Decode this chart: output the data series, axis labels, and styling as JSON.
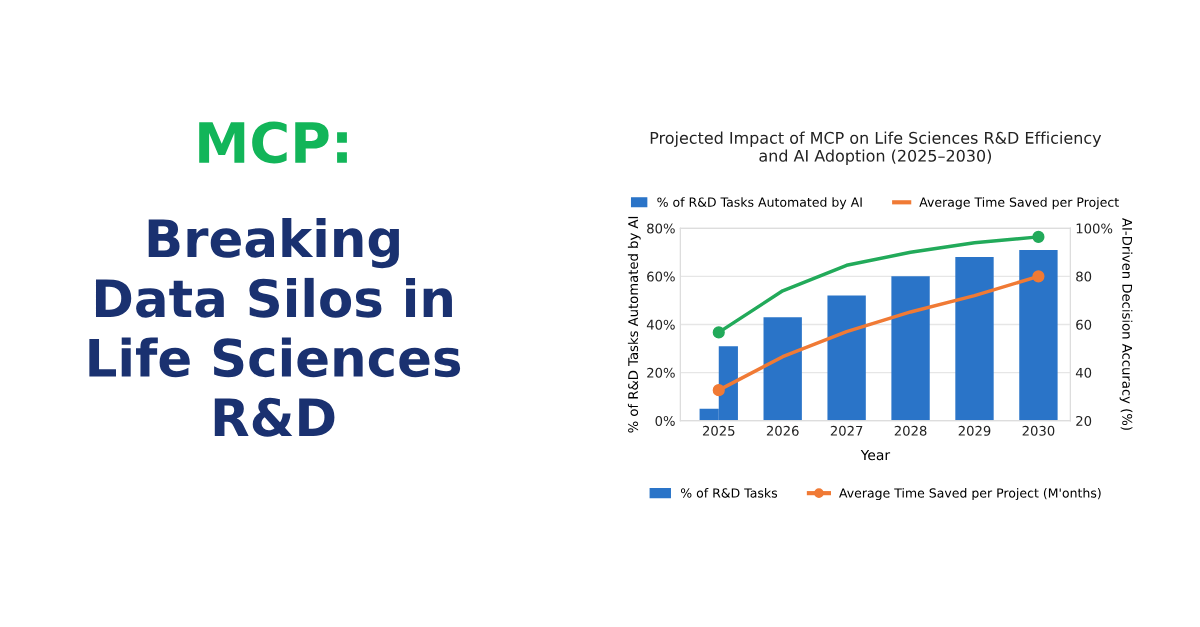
{
  "chart_data": {
    "type": "bar",
    "title": "Projected Impact of MCP on Life Sciences R&D Efficiency\nand AI Adoption (2025–2030)",
    "xlabel": "Year",
    "ylabel": "% of R&D Tasks Automated by AI",
    "y2label": "AI-Driven Decision Accuracy (%)",
    "categories": [
      "2025",
      "2026",
      "2027",
      "2028",
      "2029",
      "2030"
    ],
    "series": [
      {
        "color": "#2a74c8",
        "values": [
          5,
          null,
          null,
          null,
          null,
          null
        ]
      },
      {
        "name": "% of R&D Tasks Automated by AI",
        "color": "#2a74c8",
        "values": [
          31,
          43,
          52,
          60,
          68,
          71
        ]
      },
      {
        "type": "line",
        "axis": "y2",
        "marker": "none",
        "color": "#22aa5a",
        "values": [
          56.7,
          74,
          84.6,
          90,
          94,
          96.4
        ]
      },
      {
        "type": "line",
        "axis": "y2",
        "marker": "none",
        "name": "Average Time Saved per Project",
        "color": "#f07a35",
        "values": [
          32.7,
          46.6,
          57,
          65.2,
          72,
          80
        ]
      },
      {
        "type": "scatter",
        "axis": "y2",
        "marker": "circle",
        "color": "#22aa5a",
        "values": [
          56.7,
          null,
          null,
          null,
          null,
          96.4
        ]
      },
      {
        "type": "scatter",
        "axis": "y2",
        "marker": "circle",
        "color": "#f07a35",
        "values": [
          32.7,
          null,
          null,
          null,
          null,
          80
        ]
      }
    ],
    "ylim": [
      0,
      80
    ],
    "yticks": [
      {
        "value": 0,
        "label": "0%"
      },
      {
        "value": 20,
        "label": "20%"
      },
      {
        "value": 40,
        "label": "40%"
      },
      {
        "value": 60,
        "label": "60%"
      },
      {
        "value": 80,
        "label": "80%"
      }
    ],
    "y2lim": [
      20,
      100
    ],
    "y2ticks": [
      20,
      40,
      60,
      80,
      {
        "value": 100,
        "label": "100%"
      }
    ],
    "grid": "y",
    "legend": "top",
    "annotations": [
      "MCP:",
      "Breaking\nData Silos in\nLife Sciences\nR&D",
      "% of R&D Tasks",
      "Average Time Saved per Project (M'onths)"
    ]
  }
}
